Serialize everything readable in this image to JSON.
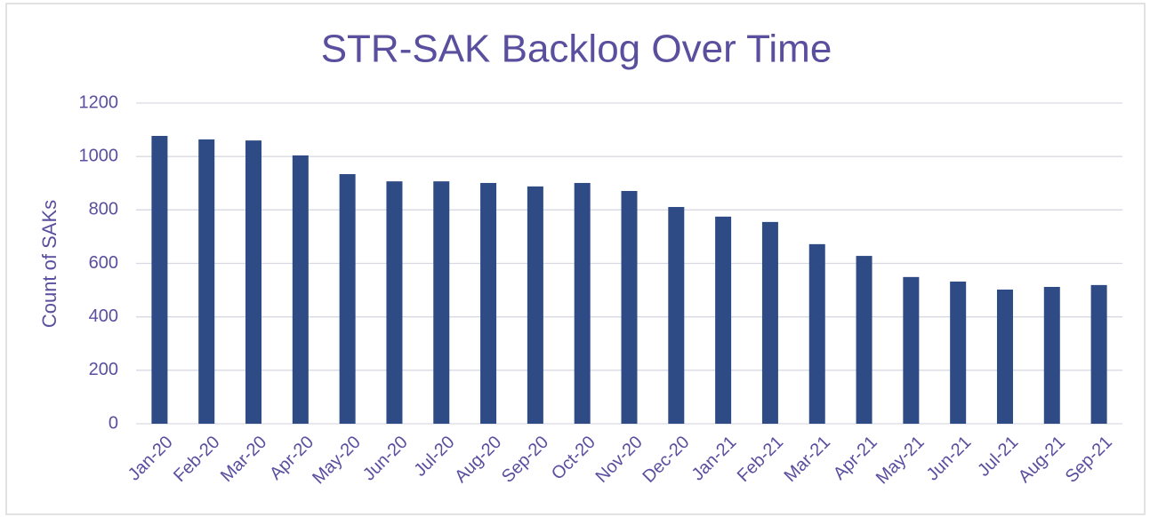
{
  "chart_data": {
    "type": "bar",
    "title": "STR-SAK Backlog Over Time",
    "y_label": "Count of SAKs",
    "categories": [
      "Jan-20",
      "Feb-20",
      "Mar-20",
      "Apr-20",
      "May-20",
      "Jun-20",
      "Jul-20",
      "Aug-20",
      "Sep-20",
      "Oct-20",
      "Nov-20",
      "Dec-20",
      "Jan-21",
      "Feb-21",
      "Mar-21",
      "Apr-21",
      "May-21",
      "Jun-21",
      "Jul-21",
      "Aug-21",
      "Sep-21"
    ],
    "values": [
      1077,
      1064,
      1060,
      1004,
      934,
      907,
      907,
      901,
      888,
      901,
      871,
      811,
      775,
      755,
      672,
      628,
      549,
      532,
      502,
      512,
      519
    ],
    "color": "#2e4b85",
    "ylim": [
      0,
      1200
    ],
    "yticks": [
      0,
      200,
      400,
      600,
      800,
      1000,
      1200
    ],
    "grid": true
  }
}
